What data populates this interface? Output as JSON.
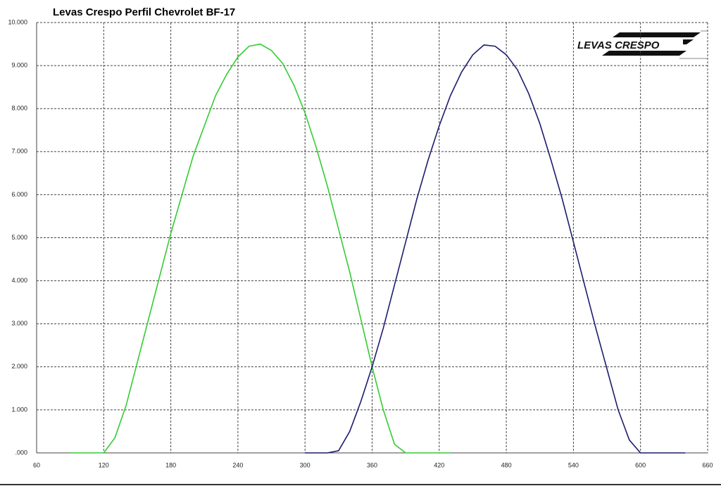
{
  "chart_data": {
    "type": "line",
    "title": "Levas Crespo Perfil Chevrolet BF-17",
    "logo_text": "LEVAS CRESPO",
    "x": [
      90,
      100,
      110,
      120,
      130,
      140,
      150,
      160,
      170,
      180,
      190,
      200,
      210,
      220,
      230,
      240,
      250,
      260,
      270,
      280,
      290,
      300,
      310,
      320,
      330,
      340,
      350,
      360,
      370,
      380,
      390,
      400,
      410,
      420,
      430,
      440,
      450,
      460,
      470,
      480,
      490,
      500,
      510,
      520,
      530,
      540,
      550,
      560,
      570,
      580,
      590,
      600,
      610,
      620,
      630,
      640
    ],
    "series": [
      {
        "color": "#33cc33",
        "values": [
          0,
          0,
          0,
          0,
          0.35,
          1.1,
          2.1,
          3.1,
          4.1,
          5.1,
          6.0,
          6.9,
          7.6,
          8.3,
          8.8,
          9.2,
          9.45,
          9.5,
          9.35,
          9.05,
          8.55,
          7.9,
          7.1,
          6.2,
          5.2,
          4.2,
          3.1,
          2.0,
          1.0,
          0.2,
          0,
          0,
          0,
          0,
          0,
          null,
          null,
          null,
          null,
          null,
          null,
          null,
          null,
          null,
          null,
          null,
          null,
          null,
          null,
          null,
          null,
          null,
          null,
          null,
          null,
          null
        ]
      },
      {
        "color": "#1c1c6e",
        "values": [
          null,
          null,
          null,
          null,
          null,
          null,
          null,
          null,
          null,
          null,
          null,
          null,
          null,
          null,
          null,
          null,
          null,
          null,
          null,
          null,
          null,
          0,
          0,
          0,
          0.05,
          0.5,
          1.2,
          2.0,
          2.9,
          3.9,
          4.9,
          5.9,
          6.8,
          7.6,
          8.3,
          8.85,
          9.25,
          9.48,
          9.45,
          9.25,
          8.9,
          8.35,
          7.65,
          6.8,
          5.9,
          4.9,
          3.9,
          2.9,
          1.95,
          1.0,
          0.3,
          0,
          0,
          0,
          0,
          0
        ]
      }
    ],
    "xlim": [
      60,
      660
    ],
    "xticks": [
      60,
      120,
      180,
      240,
      300,
      360,
      420,
      480,
      540,
      600,
      660
    ],
    "ylim": [
      0,
      10
    ],
    "yticks": [
      {
        "value": 0,
        "label": ".000"
      },
      {
        "value": 1,
        "label": "1.000"
      },
      {
        "value": 2,
        "label": "2.000"
      },
      {
        "value": 3,
        "label": "3.000"
      },
      {
        "value": 4,
        "label": "4.000"
      },
      {
        "value": 5,
        "label": "5.000"
      },
      {
        "value": 6,
        "label": "6.000"
      },
      {
        "value": 7,
        "label": "7.000"
      },
      {
        "value": 8,
        "label": "8.000"
      },
      {
        "value": 9,
        "label": "9.000"
      },
      {
        "value": 10,
        "label": "10.000"
      }
    ],
    "grid": true
  }
}
